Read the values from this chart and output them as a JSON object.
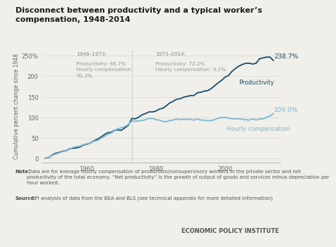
{
  "title": "Disconnect between productivity and a typical worker’s\ncompensation, 1948-2014",
  "ylabel": "Cumulative percent change since 1948",
  "bg_color": "#f0efea",
  "plot_bg_color": "#f0efea",
  "productivity_color": "#1a4f6e",
  "compensation_color": "#7ab8d4",
  "divider_year": 1973,
  "annotation_left_title": "1948–1973:",
  "annotation_left_lines": [
    "Productivity: 96.7%",
    "Hourly compensation:",
    "91.3%"
  ],
  "annotation_right_title": "1973–2014:",
  "annotation_right_lines": [
    "Productivity: 72.2%",
    "Hourly compensation: 9.2%"
  ],
  "label_productivity": "Productivity",
  "label_compensation": "Hourly compensation",
  "end_label_prod": "238.7%",
  "end_label_comp": "109.0%",
  "note_bold": "Note:",
  "note_text": " Data are for average hourly compensation of production/nonsupervisory workers in the private sector and net\nproductivity of the total economy. “Net productivity” is the growth of output of goods and services minus depreciation per\nhour worked.",
  "source_bold": "Source:",
  "source_text": " EPI analysis of data from the BEA and BLS (see technical appendix for more detailed information)",
  "footer_text": "ECONOMIC POLICY INSTITUTE",
  "footer_bg": "#ddddd8",
  "ylim": [
    -10,
    265
  ],
  "yticks": [
    0,
    50,
    100,
    150,
    200,
    250
  ],
  "ytick_labels": [
    "0",
    "50",
    "100",
    "150",
    "200",
    "250%"
  ],
  "xticks": [
    1960,
    1980,
    2000
  ],
  "productivity_years": [
    1948,
    1949,
    1950,
    1951,
    1952,
    1953,
    1954,
    1955,
    1956,
    1957,
    1958,
    1959,
    1960,
    1961,
    1962,
    1963,
    1964,
    1965,
    1966,
    1967,
    1968,
    1969,
    1970,
    1971,
    1972,
    1973,
    1974,
    1975,
    1976,
    1977,
    1978,
    1979,
    1980,
    1981,
    1982,
    1983,
    1984,
    1985,
    1986,
    1987,
    1988,
    1989,
    1990,
    1991,
    1992,
    1993,
    1994,
    1995,
    1996,
    1997,
    1998,
    1999,
    2000,
    2001,
    2002,
    2003,
    2004,
    2005,
    2006,
    2007,
    2008,
    2009,
    2010,
    2011,
    2012,
    2013,
    2014
  ],
  "productivity_values": [
    0,
    1.5,
    8,
    12,
    14,
    17,
    18,
    23,
    24,
    25,
    27,
    32,
    34,
    37,
    42,
    46,
    51,
    57,
    62,
    63,
    68,
    69,
    68,
    74,
    80,
    97,
    96,
    100,
    106,
    109,
    113,
    113,
    115,
    120,
    122,
    128,
    135,
    139,
    144,
    145,
    149,
    151,
    153,
    153,
    160,
    161,
    164,
    165,
    170,
    177,
    184,
    190,
    198,
    202,
    212,
    219,
    225,
    229,
    232,
    232,
    230,
    232,
    243,
    245,
    247,
    247,
    238.7
  ],
  "compensation_years": [
    1948,
    1949,
    1950,
    1951,
    1952,
    1953,
    1954,
    1955,
    1956,
    1957,
    1958,
    1959,
    1960,
    1961,
    1962,
    1963,
    1964,
    1965,
    1966,
    1967,
    1968,
    1969,
    1970,
    1971,
    1972,
    1973,
    1974,
    1975,
    1976,
    1977,
    1978,
    1979,
    1980,
    1981,
    1982,
    1983,
    1984,
    1985,
    1986,
    1987,
    1988,
    1989,
    1990,
    1991,
    1992,
    1993,
    1994,
    1995,
    1996,
    1997,
    1998,
    1999,
    2000,
    2001,
    2002,
    2003,
    2004,
    2005,
    2006,
    2007,
    2008,
    2009,
    2010,
    2011,
    2012,
    2013,
    2014
  ],
  "compensation_values": [
    0,
    2,
    7,
    10,
    13,
    16,
    18,
    22,
    26,
    28,
    29,
    33,
    35,
    37,
    41,
    43,
    48,
    53,
    58,
    61,
    67,
    72,
    74,
    77,
    82,
    91,
    90,
    91,
    92,
    94,
    97,
    97,
    94,
    93,
    90,
    89,
    92,
    93,
    96,
    94,
    95,
    95,
    95,
    93,
    96,
    93,
    93,
    91,
    92,
    94,
    98,
    99,
    100,
    98,
    96,
    96,
    96,
    95,
    94,
    93,
    96,
    93,
    96,
    96,
    100,
    103,
    109.0
  ]
}
